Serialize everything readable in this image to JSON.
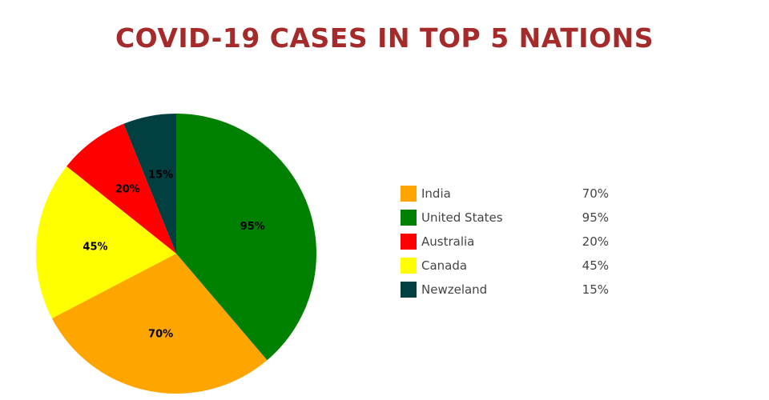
{
  "chart_data": {
    "type": "pie",
    "title": "COVID-19 CASES IN TOP 5 NATIONS",
    "legend_position": "right",
    "slices": [
      {
        "label": "India",
        "value": 70,
        "display": "70%",
        "color": "#FFA500"
      },
      {
        "label": "United States",
        "value": 95,
        "display": "95%",
        "color": "#008000"
      },
      {
        "label": "Australia",
        "value": 20,
        "display": "20%",
        "color": "#FF0000"
      },
      {
        "label": "Canada",
        "value": 45,
        "display": "45%",
        "color": "#FFFF00"
      },
      {
        "label": "Newzeland",
        "value": 15,
        "display": "15%",
        "color": "#023F40"
      }
    ],
    "draw_order": [
      "United States",
      "India",
      "Canada",
      "Australia",
      "Newzeland"
    ]
  }
}
